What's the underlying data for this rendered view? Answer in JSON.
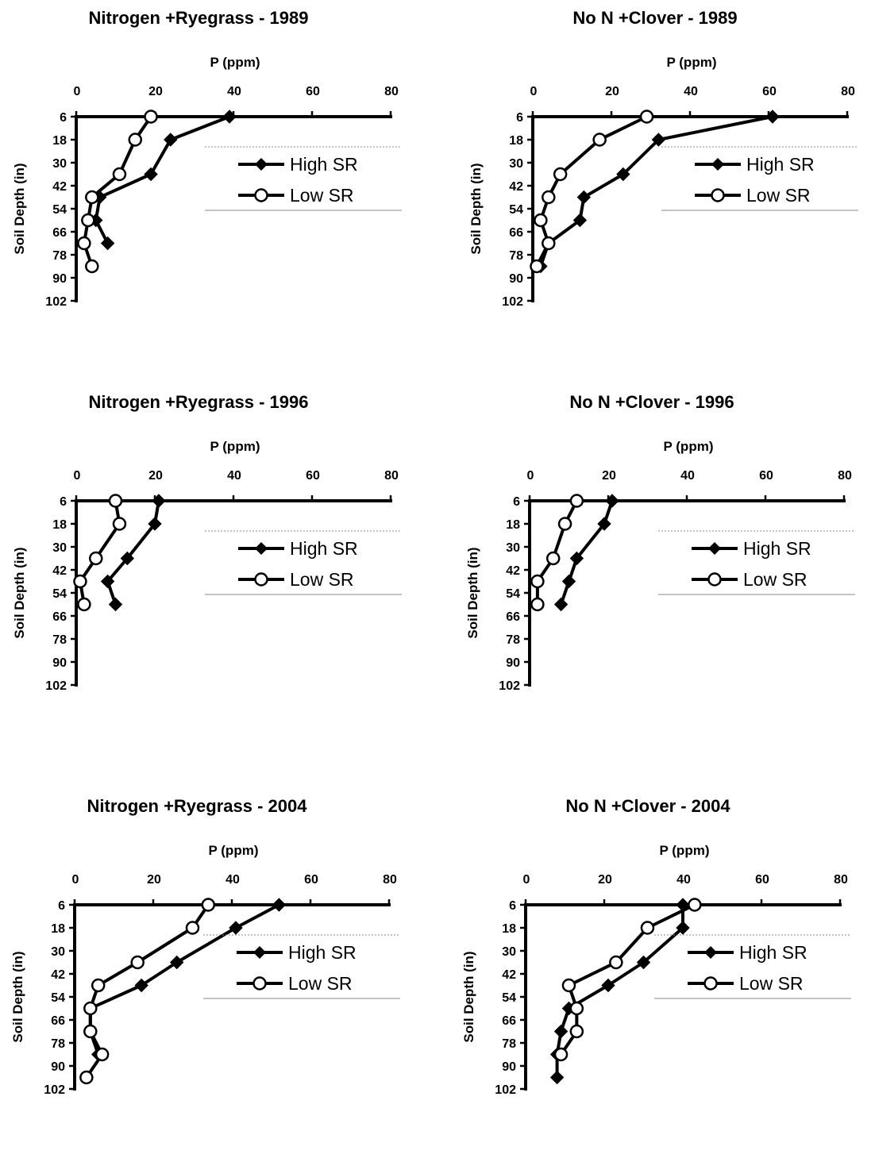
{
  "chart_data": [
    {
      "type": "line",
      "title": "Nitrogen +Ryegrass  - 1989",
      "xlabel": "P (ppm)",
      "ylabel": "Soil Depth (in)",
      "xlim": [
        0,
        80
      ],
      "x_ticks": [
        "0",
        "20",
        "40",
        "60",
        "80"
      ],
      "y_ticks": [
        "6",
        "18",
        "30",
        "42",
        "54",
        "66",
        "78",
        "90",
        "102"
      ],
      "ylim": [
        6,
        102
      ],
      "legend_position": "right",
      "series": [
        {
          "name": "High SR",
          "marker": "filled-diamond",
          "points": [
            [
              39,
              6
            ],
            [
              24,
              18
            ],
            [
              19,
              36
            ],
            [
              6,
              48
            ],
            [
              5,
              60
            ],
            [
              8,
              72
            ]
          ]
        },
        {
          "name": "Low SR",
          "marker": "open-circle",
          "points": [
            [
              19,
              6
            ],
            [
              15,
              18
            ],
            [
              11,
              36
            ],
            [
              4,
              48
            ],
            [
              3,
              60
            ],
            [
              2,
              72
            ],
            [
              4,
              84
            ]
          ]
        }
      ]
    },
    {
      "type": "line",
      "title": "No N +Clover - 1989",
      "xlabel": "P (ppm)",
      "ylabel": "Soil Depth (in)",
      "xlim": [
        0,
        80
      ],
      "x_ticks": [
        "0",
        "20",
        "40",
        "60",
        "80"
      ],
      "y_ticks": [
        "6",
        "18",
        "30",
        "42",
        "54",
        "66",
        "78",
        "90",
        "102"
      ],
      "ylim": [
        6,
        102
      ],
      "legend_position": "right",
      "series": [
        {
          "name": "High SR",
          "marker": "filled-diamond",
          "points": [
            [
              61,
              6
            ],
            [
              32,
              18
            ],
            [
              23,
              36
            ],
            [
              13,
              48
            ],
            [
              12,
              60
            ],
            [
              4,
              72
            ],
            [
              2,
              84
            ]
          ]
        },
        {
          "name": "Low SR",
          "marker": "open-circle",
          "points": [
            [
              29,
              6
            ],
            [
              17,
              18
            ],
            [
              7,
              36
            ],
            [
              4,
              48
            ],
            [
              2,
              60
            ],
            [
              4,
              72
            ],
            [
              1,
              84
            ]
          ]
        }
      ]
    },
    {
      "type": "line",
      "title": "Nitrogen +Ryegrass - 1996",
      "xlabel": "P (ppm)",
      "ylabel": "Soil Depth (in)",
      "xlim": [
        0,
        80
      ],
      "x_ticks": [
        "0",
        "20",
        "40",
        "60",
        "80"
      ],
      "y_ticks": [
        "6",
        "18",
        "30",
        "42",
        "54",
        "66",
        "78",
        "90",
        "102"
      ],
      "ylim": [
        6,
        102
      ],
      "legend_position": "right",
      "series": [
        {
          "name": "High SR",
          "marker": "filled-diamond",
          "points": [
            [
              21,
              6
            ],
            [
              20,
              18
            ],
            [
              13,
              36
            ],
            [
              8,
              48
            ],
            [
              10,
              60
            ]
          ]
        },
        {
          "name": "Low SR",
          "marker": "open-circle",
          "points": [
            [
              10,
              6
            ],
            [
              11,
              18
            ],
            [
              5,
              36
            ],
            [
              1,
              48
            ],
            [
              2,
              60
            ]
          ]
        }
      ]
    },
    {
      "type": "line",
      "title": "No N +Clover - 1996",
      "xlabel": "P (ppm)",
      "ylabel": "Soil Depth (in)",
      "xlim": [
        0,
        80
      ],
      "x_ticks": [
        "0",
        "20",
        "40",
        "60",
        "80"
      ],
      "y_ticks": [
        "6",
        "18",
        "30",
        "42",
        "54",
        "66",
        "78",
        "90",
        "102"
      ],
      "ylim": [
        6,
        102
      ],
      "legend_position": "right",
      "series": [
        {
          "name": "High SR",
          "marker": "filled-diamond",
          "points": [
            [
              21,
              6
            ],
            [
              19,
              18
            ],
            [
              12,
              36
            ],
            [
              10,
              48
            ],
            [
              8,
              60
            ]
          ]
        },
        {
          "name": "Low SR",
          "marker": "open-circle",
          "points": [
            [
              12,
              6
            ],
            [
              9,
              18
            ],
            [
              6,
              36
            ],
            [
              2,
              48
            ],
            [
              2,
              60
            ]
          ]
        }
      ]
    },
    {
      "type": "line",
      "title": "Nitrogen +Ryegrass - 2004",
      "xlabel": "P (ppm)",
      "ylabel": "Soil Depth (in)",
      "xlim": [
        0,
        80
      ],
      "x_ticks": [
        "0",
        "20",
        "40",
        "60",
        "80"
      ],
      "y_ticks": [
        "6",
        "18",
        "30",
        "42",
        "54",
        "66",
        "78",
        "90",
        "102"
      ],
      "ylim": [
        6,
        102
      ],
      "legend_position": "right",
      "series": [
        {
          "name": "High SR",
          "marker": "filled-diamond",
          "points": [
            [
              52,
              6
            ],
            [
              41,
              18
            ],
            [
              26,
              36
            ],
            [
              17,
              48
            ],
            [
              4,
              60
            ],
            [
              4,
              72
            ],
            [
              6,
              84
            ]
          ]
        },
        {
          "name": "Low SR",
          "marker": "open-circle",
          "points": [
            [
              34,
              6
            ],
            [
              30,
              18
            ],
            [
              16,
              36
            ],
            [
              6,
              48
            ],
            [
              4,
              60
            ],
            [
              4,
              72
            ],
            [
              7,
              84
            ],
            [
              3,
              96
            ]
          ]
        }
      ]
    },
    {
      "type": "line",
      "title": "No N +Clover - 2004",
      "xlabel": "P (ppm)",
      "ylabel": "Soil Depth (in)",
      "xlim": [
        0,
        80
      ],
      "x_ticks": [
        "0",
        "20",
        "40",
        "60",
        "80"
      ],
      "y_ticks": [
        "6",
        "18",
        "30",
        "42",
        "54",
        "66",
        "78",
        "90",
        "102"
      ],
      "ylim": [
        6,
        102
      ],
      "legend_position": "right",
      "series": [
        {
          "name": "High SR",
          "marker": "filled-diamond",
          "points": [
            [
              40,
              6
            ],
            [
              40,
              18
            ],
            [
              30,
              36
            ],
            [
              21,
              48
            ],
            [
              11,
              60
            ],
            [
              9,
              72
            ],
            [
              8,
              84
            ],
            [
              8,
              96
            ]
          ]
        },
        {
          "name": "Low SR",
          "marker": "open-circle",
          "points": [
            [
              43,
              6
            ],
            [
              31,
              18
            ],
            [
              23,
              36
            ],
            [
              11,
              48
            ],
            [
              13,
              60
            ],
            [
              13,
              72
            ],
            [
              9,
              84
            ]
          ]
        }
      ]
    }
  ]
}
